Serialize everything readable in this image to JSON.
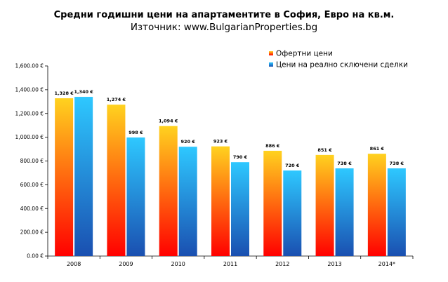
{
  "chart_data": {
    "type": "bar",
    "title": "Средни годишни цени на апартаментите в София, Евро на кв.м.",
    "subtitle": "Източник: www.BulgarianProperties.bg",
    "categories": [
      "2008",
      "2009",
      "2010",
      "2011",
      "2012",
      "2013",
      "2014*"
    ],
    "series": [
      {
        "name": "Офертни цени",
        "values": [
          1328,
          1274,
          1094,
          923,
          886,
          851,
          861
        ],
        "labels": [
          "1,328 €",
          "1,274 €",
          "1,094 €",
          "923 €",
          "886 €",
          "851 €",
          "861 €"
        ],
        "color_top": "#ffd21f",
        "color_bottom": "#ff0000"
      },
      {
        "name": "Цени на реално сключени сделки",
        "values": [
          1340,
          998,
          920,
          790,
          720,
          738,
          738
        ],
        "labels": [
          "1,340 €",
          "998 €",
          "920 €",
          "790 €",
          "720 €",
          "738 €",
          "738 €"
        ],
        "color_top": "#2ec8ff",
        "color_bottom": "#1a4fb0"
      }
    ],
    "ylim": [
      0,
      1600
    ],
    "yticks": [
      0,
      200,
      400,
      600,
      800,
      1000,
      1200,
      1400,
      1600
    ],
    "ytick_labels": [
      "0.00 €",
      "200.00 €",
      "400.00 €",
      "600.00 €",
      "800.00 €",
      "1,000.00 €",
      "1,200.00 €",
      "1,400.00 €",
      "1,600.00 €"
    ],
    "legend_position": "top-right",
    "grid": false
  }
}
